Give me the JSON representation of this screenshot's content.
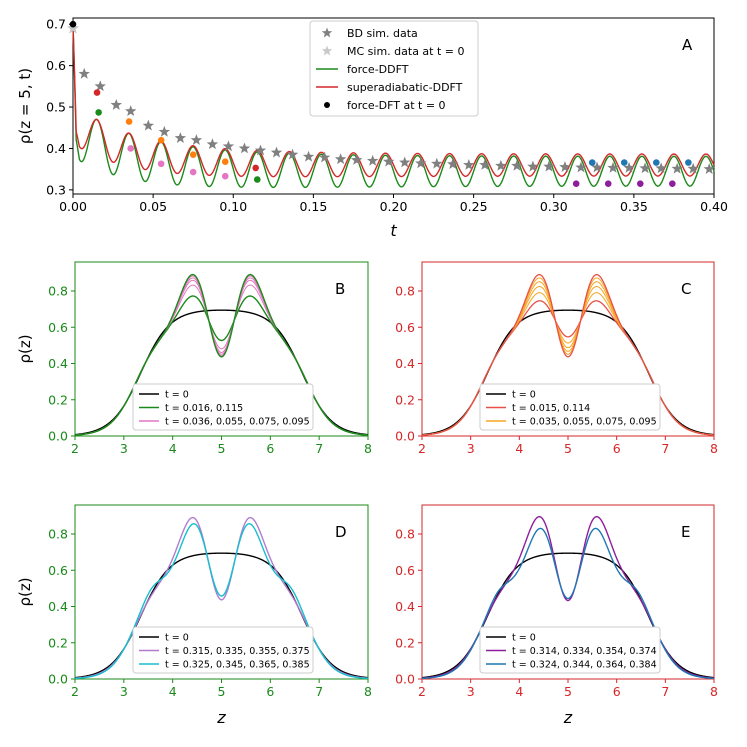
{
  "colors": {
    "force": "#1a8a1a",
    "super": "#d62728",
    "bd_star": "#808080",
    "mc_star": "#c8c8c8",
    "black": "#000000",
    "pink": "#e377c2",
    "orange_s": "#ff7f0e",
    "orange_light": "#f5a623",
    "red_light": "#e8514a",
    "purple_light": "#b07cd0",
    "cyan": "#17becf",
    "purple": "#8e1f9c",
    "teal": "#1f77b4",
    "legend_border": "#cccccc",
    "panel_green": "#1a8a1a",
    "panel_red": "#d62728"
  },
  "chart_data": [
    {
      "id": "A",
      "type": "line",
      "panel_label": "A",
      "xlabel": "t",
      "ylabel": "ρ(z = 5, t)",
      "xlim": [
        0.0,
        0.4
      ],
      "ylim": [
        0.29,
        0.715
      ],
      "xticks": [
        "0.00",
        "0.05",
        "0.10",
        "0.15",
        "0.20",
        "0.25",
        "0.30",
        "0.35",
        "0.40"
      ],
      "xtick_values": [
        0.0,
        0.05,
        0.1,
        0.15,
        0.2,
        0.25,
        0.3,
        0.35,
        0.4
      ],
      "yticks": [
        "0.3",
        "0.4",
        "0.5",
        "0.6",
        "0.7"
      ],
      "ytick_values": [
        0.3,
        0.4,
        0.5,
        0.6,
        0.7
      ],
      "legend_position": "top-center",
      "legend": [
        {
          "label": "BD sim. data",
          "marker": "star",
          "color": "bd_star"
        },
        {
          "label": "MC sim. data at t = 0",
          "marker": "star",
          "color": "mc_star"
        },
        {
          "label": "force-DDFT",
          "marker": "line",
          "color": "force"
        },
        {
          "label": "superadiabatic-DDFT",
          "marker": "line",
          "color": "super"
        },
        {
          "label": "force-DFT at t = 0",
          "marker": "dot",
          "color": "black"
        }
      ],
      "model": {
        "rho0": 0.7,
        "force": {
          "base": 0.345,
          "amp": 0.065,
          "period": 0.02,
          "decay_early": 0.035,
          "decay_amp": 0.1
        },
        "super": {
          "base": 0.36,
          "amp": 0.048,
          "period": 0.02,
          "decay_early": 0.035,
          "decay_amp": 0.1
        },
        "bd_stars_t": [
          0.0,
          0.007,
          0.017,
          0.027,
          0.036,
          0.047,
          0.057,
          0.067,
          0.077,
          0.087,
          0.097,
          0.107,
          0.117,
          0.127,
          0.137,
          0.147,
          0.157,
          0.167,
          0.177,
          0.187,
          0.197,
          0.207,
          0.217,
          0.227,
          0.237,
          0.247,
          0.257,
          0.267,
          0.277,
          0.287,
          0.297,
          0.307,
          0.317,
          0.327,
          0.337,
          0.347,
          0.357,
          0.367,
          0.377,
          0.387,
          0.397
        ],
        "bd_stars_v": [
          0.69,
          0.58,
          0.55,
          0.505,
          0.49,
          0.455,
          0.44,
          0.425,
          0.42,
          0.41,
          0.405,
          0.4,
          0.395,
          0.39,
          0.385,
          0.38,
          0.378,
          0.374,
          0.372,
          0.37,
          0.368,
          0.366,
          0.364,
          0.363,
          0.362,
          0.36,
          0.36,
          0.358,
          0.358,
          0.356,
          0.356,
          0.355,
          0.354,
          0.354,
          0.353,
          0.353,
          0.352,
          0.352,
          0.351,
          0.351,
          0.35
        ],
        "points": [
          {
            "t": 0.0,
            "v": 0.7,
            "color": "black"
          },
          {
            "t": 0.016,
            "v": 0.487,
            "color": "force"
          },
          {
            "t": 0.036,
            "v": 0.4,
            "color": "pink"
          },
          {
            "t": 0.055,
            "v": 0.363,
            "color": "pink"
          },
          {
            "t": 0.075,
            "v": 0.343,
            "color": "pink"
          },
          {
            "t": 0.095,
            "v": 0.333,
            "color": "pink"
          },
          {
            "t": 0.115,
            "v": 0.325,
            "color": "force"
          },
          {
            "t": 0.015,
            "v": 0.535,
            "color": "super"
          },
          {
            "t": 0.035,
            "v": 0.465,
            "color": "orange_s"
          },
          {
            "t": 0.055,
            "v": 0.42,
            "color": "orange_s"
          },
          {
            "t": 0.075,
            "v": 0.385,
            "color": "orange_s"
          },
          {
            "t": 0.095,
            "v": 0.368,
            "color": "orange_s"
          },
          {
            "t": 0.114,
            "v": 0.353,
            "color": "super"
          },
          {
            "t": 0.314,
            "v": 0.315,
            "color": "purple"
          },
          {
            "t": 0.334,
            "v": 0.315,
            "color": "purple"
          },
          {
            "t": 0.354,
            "v": 0.315,
            "color": "purple"
          },
          {
            "t": 0.374,
            "v": 0.315,
            "color": "purple"
          },
          {
            "t": 0.324,
            "v": 0.366,
            "color": "teal"
          },
          {
            "t": 0.344,
            "v": 0.366,
            "color": "teal"
          },
          {
            "t": 0.364,
            "v": 0.366,
            "color": "teal"
          },
          {
            "t": 0.384,
            "v": 0.366,
            "color": "teal"
          }
        ]
      }
    },
    {
      "id": "B",
      "type": "line",
      "panel_label": "B",
      "frame_color": "panel_green",
      "xlabel": "",
      "ylabel": "ρ(z)",
      "xlim": [
        2,
        8
      ],
      "ylim": [
        0.0,
        0.96
      ],
      "xticks": [
        "2",
        "3",
        "4",
        "5",
        "6",
        "7",
        "8"
      ],
      "xtick_values": [
        2,
        3,
        4,
        5,
        6,
        7,
        8
      ],
      "yticks": [
        "0.0",
        "0.2",
        "0.4",
        "0.6",
        "0.8"
      ],
      "ytick_values": [
        0.0,
        0.2,
        0.4,
        0.6,
        0.8
      ],
      "legend_position": "bottom-center",
      "legend": [
        {
          "label": "t = 0",
          "color": "black"
        },
        {
          "label": "t = 0.016, 0.115",
          "color": "force"
        },
        {
          "label": "t = 0.036, 0.055, 0.075, 0.095",
          "color": "pink"
        }
      ],
      "series": [
        {
          "name": "t = 0",
          "color": "black",
          "kind": "base",
          "width": 1.4
        },
        {
          "name": "t = 0.016",
          "color": "force",
          "kind": "osc",
          "s": 0.55,
          "width": 1.4
        },
        {
          "name": "t = 0.036",
          "color": "pink",
          "kind": "osc",
          "s": 0.78,
          "width": 1.0
        },
        {
          "name": "t = 0.055",
          "color": "pink",
          "kind": "osc",
          "s": 0.88,
          "width": 1.0
        },
        {
          "name": "t = 0.075",
          "color": "pink",
          "kind": "osc",
          "s": 0.93,
          "width": 1.0
        },
        {
          "name": "t = 0.095",
          "color": "pink",
          "kind": "osc",
          "s": 0.97,
          "width": 1.0
        },
        {
          "name": "t = 0.115",
          "color": "force",
          "kind": "osc",
          "s": 1.0,
          "width": 1.4
        }
      ]
    },
    {
      "id": "C",
      "type": "line",
      "panel_label": "C",
      "frame_color": "panel_red",
      "xlabel": "",
      "ylabel": "",
      "xlim": [
        2,
        8
      ],
      "ylim": [
        0.0,
        0.96
      ],
      "xticks": [
        "2",
        "3",
        "4",
        "5",
        "6",
        "7",
        "8"
      ],
      "xtick_values": [
        2,
        3,
        4,
        5,
        6,
        7,
        8
      ],
      "yticks": [
        "0.0",
        "0.2",
        "0.4",
        "0.6",
        "0.8"
      ],
      "ytick_values": [
        0.0,
        0.2,
        0.4,
        0.6,
        0.8
      ],
      "legend_position": "bottom-center",
      "legend": [
        {
          "label": "t = 0",
          "color": "black"
        },
        {
          "label": "t = 0.015, 0.114",
          "color": "red_light"
        },
        {
          "label": "t = 0.035, 0.055, 0.075, 0.095",
          "color": "orange_light"
        }
      ],
      "series": [
        {
          "name": "t = 0",
          "color": "black",
          "kind": "base",
          "width": 1.4
        },
        {
          "name": "t = 0.015",
          "color": "red_light",
          "kind": "osc",
          "s": 0.45,
          "width": 1.3
        },
        {
          "name": "t = 0.035",
          "color": "orange_light",
          "kind": "osc",
          "s": 0.62,
          "width": 1.0
        },
        {
          "name": "t = 0.055",
          "color": "orange_light",
          "kind": "osc",
          "s": 0.75,
          "width": 1.0
        },
        {
          "name": "t = 0.075",
          "color": "orange_light",
          "kind": "osc",
          "s": 0.85,
          "width": 1.0
        },
        {
          "name": "t = 0.095",
          "color": "orange_light",
          "kind": "osc",
          "s": 0.93,
          "width": 1.0
        },
        {
          "name": "t = 0.114",
          "color": "red_light",
          "kind": "osc",
          "s": 1.0,
          "width": 1.3
        }
      ]
    },
    {
      "id": "D",
      "type": "line",
      "panel_label": "D",
      "frame_color": "panel_green",
      "xlabel": "z",
      "ylabel": "ρ(z)",
      "xlim": [
        2,
        8
      ],
      "ylim": [
        0.0,
        0.96
      ],
      "xticks": [
        "2",
        "3",
        "4",
        "5",
        "6",
        "7",
        "8"
      ],
      "xtick_values": [
        2,
        3,
        4,
        5,
        6,
        7,
        8
      ],
      "yticks": [
        "0.0",
        "0.2",
        "0.4",
        "0.6",
        "0.8"
      ],
      "ytick_values": [
        0.0,
        0.2,
        0.4,
        0.6,
        0.8
      ],
      "legend_position": "bottom-center",
      "legend": [
        {
          "label": "t = 0",
          "color": "black"
        },
        {
          "label": "t = 0.315, 0.335, 0.355, 0.375",
          "color": "purple_light"
        },
        {
          "label": "t = 0.325, 0.345, 0.365, 0.385",
          "color": "cyan"
        }
      ],
      "series": [
        {
          "name": "t = 0",
          "color": "black",
          "kind": "base",
          "width": 1.4
        },
        {
          "name": "t = 0.315 ...",
          "color": "purple_light",
          "kind": "osc",
          "s": 1.0,
          "width": 1.4
        },
        {
          "name": "t = 0.325 ...",
          "color": "cyan",
          "kind": "osc2",
          "s": 1.0,
          "width": 1.4
        }
      ]
    },
    {
      "id": "E",
      "type": "line",
      "panel_label": "E",
      "frame_color": "panel_red",
      "xlabel": "z",
      "ylabel": "",
      "xlim": [
        2,
        8
      ],
      "ylim": [
        0.0,
        0.96
      ],
      "xticks": [
        "2",
        "3",
        "4",
        "5",
        "6",
        "7",
        "8"
      ],
      "xtick_values": [
        2,
        3,
        4,
        5,
        6,
        7,
        8
      ],
      "yticks": [
        "0.0",
        "0.2",
        "0.4",
        "0.6",
        "0.8"
      ],
      "ytick_values": [
        0.0,
        0.2,
        0.4,
        0.6,
        0.8
      ],
      "legend_position": "bottom-center",
      "legend": [
        {
          "label": "t = 0",
          "color": "black"
        },
        {
          "label": "t = 0.314, 0.334, 0.354, 0.374",
          "color": "purple"
        },
        {
          "label": "t = 0.324, 0.344, 0.364, 0.384",
          "color": "teal"
        }
      ],
      "series": [
        {
          "name": "t = 0",
          "color": "black",
          "kind": "base",
          "width": 1.4
        },
        {
          "name": "t = 0.314 ...",
          "color": "purple",
          "kind": "osc",
          "s": 1.02,
          "width": 1.4
        },
        {
          "name": "t = 0.324 ...",
          "color": "teal",
          "kind": "osc2",
          "s": 0.97,
          "width": 1.4
        }
      ]
    }
  ]
}
